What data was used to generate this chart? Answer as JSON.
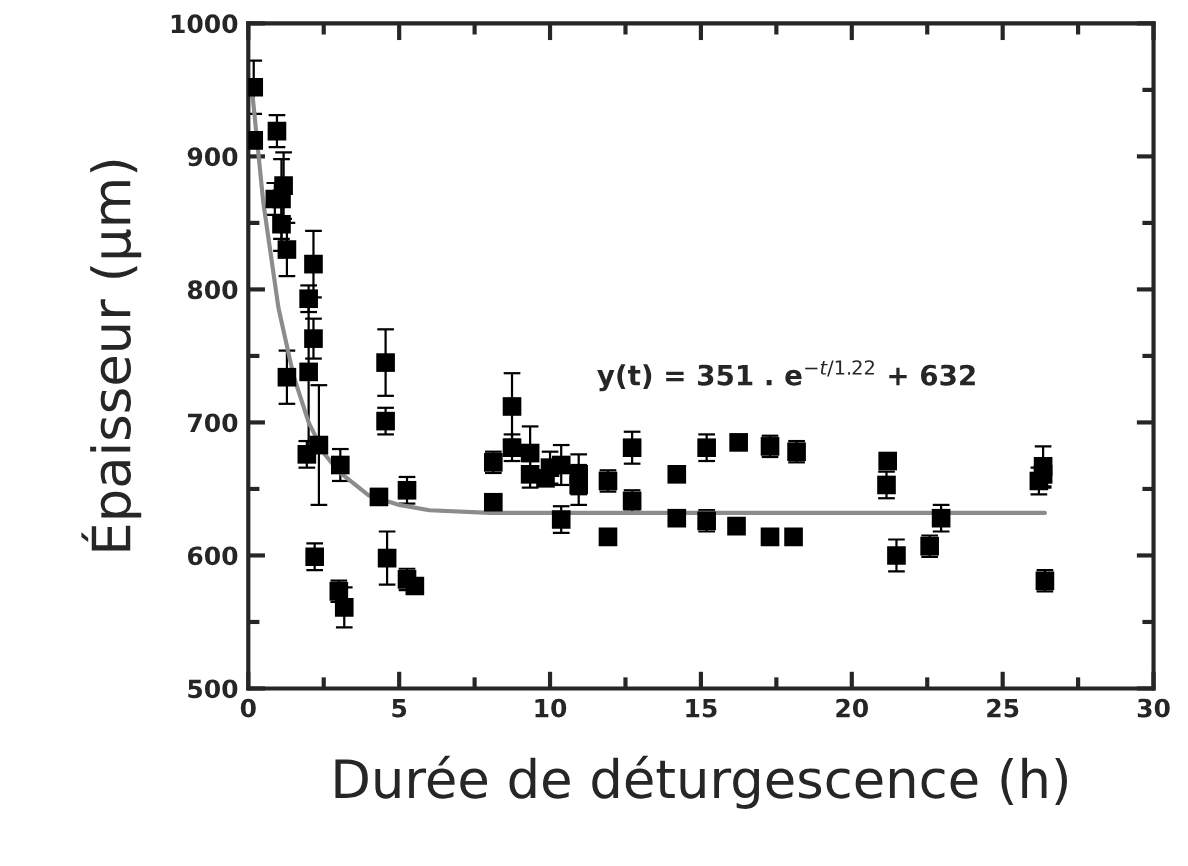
{
  "chart_data": {
    "type": "scatter",
    "xlabel": "Durée de déturgescence (h)",
    "ylabel": "Épaisseur (µm)",
    "xlim": [
      0,
      30
    ],
    "xticks": [
      0,
      5,
      10,
      15,
      20,
      25,
      30
    ],
    "ylim": [
      500,
      1000
    ],
    "yticks": [
      500,
      600,
      700,
      800,
      900,
      1000
    ],
    "grid": false,
    "legend": false,
    "marker": "square",
    "annotations": [
      "y(t) = 351 . e$^{−t/1.22}$ + 632"
    ],
    "series": [
      {
        "color": "#000000",
        "x": [
          0.18,
          0.18,
          0.95,
          0.88,
          1.1,
          1.17,
          1.1,
          1.28,
          1.28,
          2.16,
          2.0,
          2.16,
          2.0,
          1.94,
          2.34,
          2.2,
          3.05,
          3.0,
          3.18,
          4.55,
          4.55,
          4.33,
          4.6,
          5.26,
          5.26,
          5.52,
          8.12,
          8.12,
          8.74,
          8.74,
          9.34,
          9.34,
          9.85,
          10.0,
          10.37,
          10.37,
          10.95,
          10.95,
          11.92,
          11.92,
          12.72,
          12.72,
          14.2,
          14.2,
          15.19,
          15.19,
          16.25,
          16.18,
          17.29,
          17.29,
          18.17,
          18.07,
          21.19,
          21.15,
          21.48,
          22.58,
          22.96,
          26.34,
          26.34,
          26.2,
          26.4
        ],
        "values": [
          952,
          912,
          919,
          868,
          868,
          878,
          849,
          830,
          734,
          819,
          793,
          763,
          738,
          676,
          683,
          599,
          668,
          573,
          561,
          745,
          701,
          644,
          598,
          649,
          582,
          577,
          670,
          640,
          712,
          681,
          677,
          661,
          658,
          666,
          668,
          627,
          661,
          653,
          656,
          614,
          681,
          641,
          661,
          628,
          681,
          626,
          685,
          622,
          682,
          614,
          678,
          614,
          671,
          653,
          600,
          607,
          628,
          667,
          661,
          656,
          581
        ],
        "errors": [
          20,
          null,
          12,
          12,
          30,
          25,
          20,
          20,
          20,
          25,
          10,
          15,
          60,
          10,
          45,
          10,
          12,
          8,
          15,
          25,
          10,
          5,
          20,
          10,
          8,
          null,
          8,
          null,
          25,
          10,
          20,
          10,
          null,
          12,
          15,
          10,
          15,
          15,
          8,
          null,
          12,
          8,
          null,
          null,
          10,
          8,
          null,
          null,
          8,
          null,
          8,
          null,
          null,
          10,
          12,
          8,
          10,
          15,
          10,
          10,
          8
        ]
      },
      {
        "type": "line",
        "color": "#8c8c8c",
        "marker": "none",
        "line_style": "solid",
        "x": [
          0.1,
          0.5,
          1.0,
          1.5,
          2.0,
          2.5,
          3.0,
          4.0,
          5.0,
          6.0,
          8.0,
          26.4
        ],
        "values": [
          955,
          865,
          786,
          735,
          700,
          677,
          663,
          645,
          638,
          634,
          632,
          632
        ]
      }
    ]
  }
}
